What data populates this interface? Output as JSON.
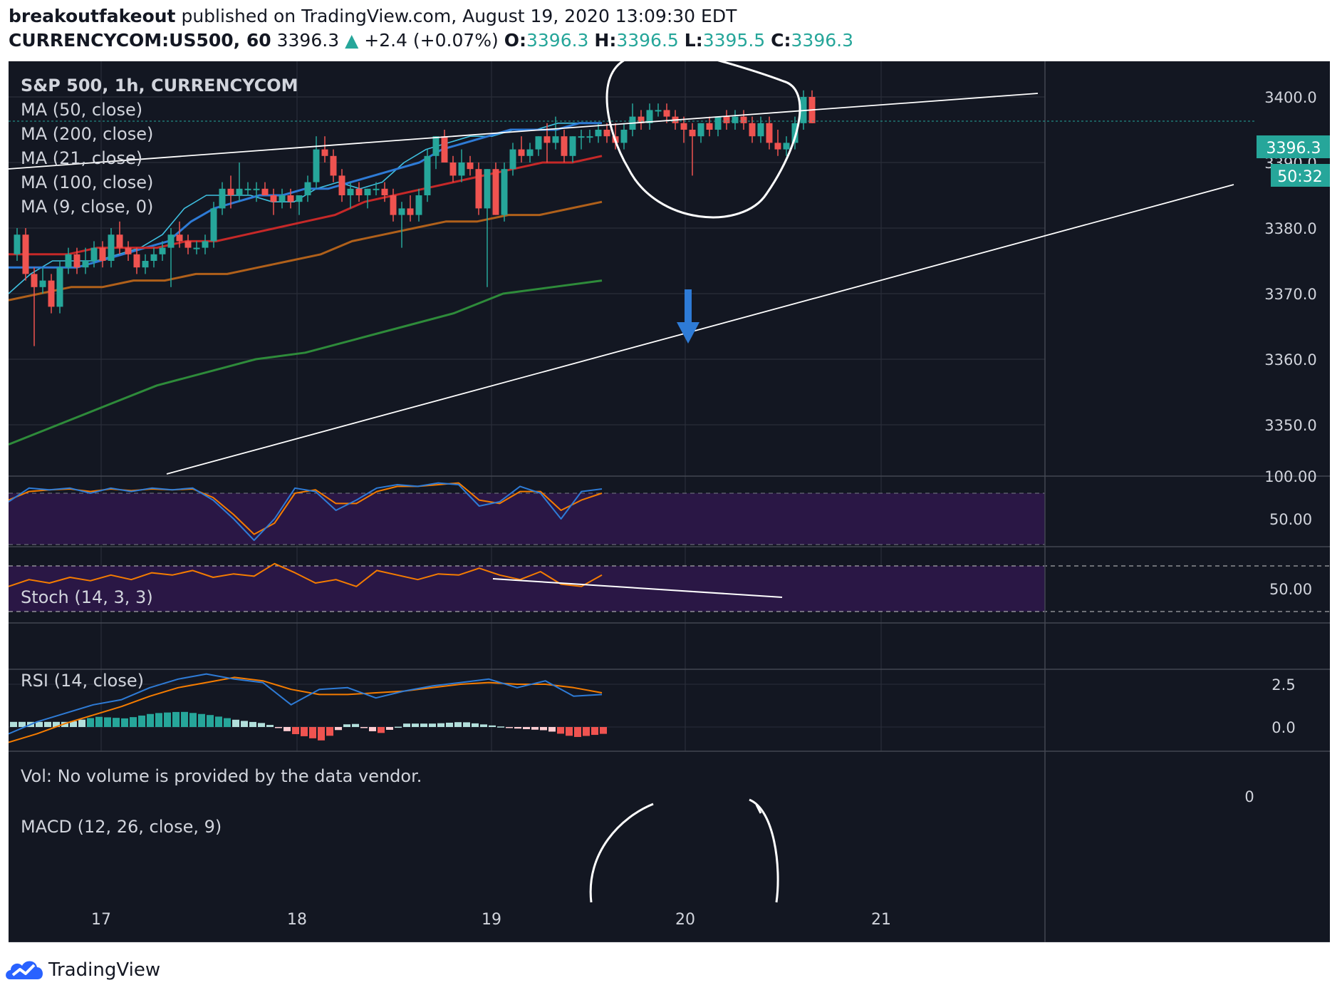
{
  "header": {
    "author": "breakoutfakeout",
    "published_text": "published on TradingView.com, August 19, 2020 13:09:30 EDT",
    "symbol": "CURRENCYCOM:US500, 60",
    "last": "3396.3",
    "change": "+2.4 (+0.07%)",
    "o_label": "O:",
    "o_value": "3396.3",
    "h_label": "H:",
    "h_value": "3396.5",
    "l_label": "L:",
    "l_value": "3395.5",
    "c_label": "C:",
    "c_value": "3396.3"
  },
  "legend": {
    "title": "S&P 500, 1h, CURRENCYCOM",
    "ma50": "MA (50, close)",
    "ma200": "MA (200, close)",
    "ma21": "MA (21, close)",
    "ma100": "MA (100, close)",
    "ma9": "MA (9, close, 0)",
    "stoch": "Stoch (14, 3, 3)",
    "rsi": "RSI (14, close)",
    "vol": "Vol: No volume is provided by the data vendor.",
    "macd": "MACD (12, 26, close, 9)"
  },
  "price_tag": "3396.3",
  "countdown": "50:32",
  "brand": "TradingView",
  "colors": {
    "background": "#131722",
    "bull": "#26a69a",
    "bear": "#ef5350",
    "ma9": "#3fc0e0",
    "ma21": "#2e7bd6",
    "ma50": "#c62828",
    "ma100": "#b0601a",
    "ma200": "#2e8b3a",
    "stoch_k": "#2e7bd6",
    "stoch_d": "#f57c00",
    "rsi": "#f57c00",
    "oscillator_band": "#2a1745"
  },
  "chart_data": {
    "type": "candlestick",
    "timeframe": "1h",
    "x_ticks": [
      "17",
      "18",
      "19",
      "20",
      "21"
    ],
    "price_axis": {
      "ticks": [
        "3400.0",
        "3390.0",
        "3380.0",
        "3370.0",
        "3360.0",
        "3350.0"
      ],
      "ylim": [
        3342.3,
        3404.4
      ]
    },
    "candles": [
      [
        3376,
        3380,
        3375,
        3379
      ],
      [
        3379,
        3380,
        3372,
        3373
      ],
      [
        3373,
        3374,
        3362,
        3371
      ],
      [
        3371,
        3374,
        3370,
        3372
      ],
      [
        3372,
        3373,
        3367,
        3368
      ],
      [
        3368,
        3375,
        3367,
        3374
      ],
      [
        3374,
        3377,
        3373,
        3376
      ],
      [
        3376,
        3377,
        3373,
        3374
      ],
      [
        3374,
        3377,
        3373,
        3375
      ],
      [
        3375,
        3378,
        3374,
        3377
      ],
      [
        3377,
        3378,
        3374,
        3375
      ],
      [
        3375,
        3380,
        3374,
        3379
      ],
      [
        3379,
        3381,
        3376,
        3377
      ],
      [
        3377,
        3378,
        3375,
        3376
      ],
      [
        3376,
        3377,
        3373,
        3374
      ],
      [
        3374,
        3376,
        3373,
        3375
      ],
      [
        3375,
        3377,
        3374,
        3376
      ],
      [
        3376,
        3378,
        3375,
        3377
      ],
      [
        3377,
        3380,
        3371,
        3379
      ],
      [
        3379,
        3381,
        3377,
        3378
      ],
      [
        3378,
        3379,
        3376,
        3377
      ],
      [
        3377,
        3378,
        3376,
        3377
      ],
      [
        3377,
        3379,
        3376,
        3378
      ],
      [
        3378,
        3384,
        3377,
        3383
      ],
      [
        3383,
        3387,
        3382,
        3386
      ],
      [
        3386,
        3388,
        3383,
        3385
      ],
      [
        3385,
        3390,
        3384,
        3386
      ],
      [
        3386,
        3387,
        3385,
        3386
      ],
      [
        3386,
        3387,
        3384,
        3386
      ],
      [
        3386,
        3387,
        3385,
        3385
      ],
      [
        3385,
        3386,
        3382,
        3384
      ],
      [
        3384,
        3386,
        3383,
        3385
      ],
      [
        3385,
        3386,
        3383,
        3384
      ],
      [
        3384,
        3385,
        3382,
        3385
      ],
      [
        3385,
        3388,
        3384,
        3387
      ],
      [
        3387,
        3394,
        3386,
        3392
      ],
      [
        3392,
        3394,
        3390,
        3391
      ],
      [
        3391,
        3392,
        3387,
        3388
      ],
      [
        3388,
        3389,
        3384,
        3385
      ],
      [
        3385,
        3387,
        3383,
        3386
      ],
      [
        3386,
        3387,
        3384,
        3385
      ],
      [
        3385,
        3386,
        3383,
        3386
      ],
      [
        3386,
        3387,
        3385,
        3386
      ],
      [
        3386,
        3387,
        3384,
        3385
      ],
      [
        3385,
        3386,
        3381,
        3382
      ],
      [
        3382,
        3384,
        3377,
        3383
      ],
      [
        3383,
        3385,
        3381,
        3382
      ],
      [
        3382,
        3386,
        3381,
        3385
      ],
      [
        3385,
        3392,
        3384,
        3391
      ],
      [
        3391,
        3394,
        3389,
        3394
      ],
      [
        3394,
        3395,
        3390,
        3390
      ],
      [
        3390,
        3391,
        3387,
        3388
      ],
      [
        3388,
        3392,
        3387,
        3390
      ],
      [
        3390,
        3391,
        3388,
        3389
      ],
      [
        3389,
        3390,
        3382,
        3383
      ],
      [
        3383,
        3389,
        3371,
        3389
      ],
      [
        3389,
        3390,
        3382,
        3382
      ],
      [
        3382,
        3390,
        3381,
        3389
      ],
      [
        3389,
        3393,
        3388,
        3392
      ],
      [
        3392,
        3394,
        3390,
        3391
      ],
      [
        3391,
        3393,
        3390,
        3392
      ],
      [
        3392,
        3394,
        3391,
        3394
      ],
      [
        3394,
        3396,
        3390,
        3393
      ],
      [
        3393,
        3397,
        3392,
        3394
      ],
      [
        3394,
        3395,
        3390,
        3391
      ],
      [
        3391,
        3394,
        3390,
        3394
      ],
      [
        3394,
        3395,
        3392,
        3394
      ],
      [
        3394,
        3395,
        3393,
        3394
      ],
      [
        3394,
        3396,
        3393,
        3395
      ],
      [
        3395,
        3396,
        3393,
        3394
      ],
      [
        3394,
        3396,
        3392,
        3393
      ],
      [
        3393,
        3396,
        3392,
        3395
      ],
      [
        3395,
        3399,
        3394,
        3397
      ],
      [
        3397,
        3398,
        3395,
        3396
      ],
      [
        3396,
        3399,
        3395,
        3398
      ],
      [
        3398,
        3399,
        3397,
        3398
      ],
      [
        3398,
        3399,
        3396,
        3397
      ],
      [
        3397,
        3398,
        3395,
        3396
      ],
      [
        3396,
        3397,
        3393,
        3395
      ],
      [
        3395,
        3396,
        3388,
        3394
      ],
      [
        3394,
        3396,
        3393,
        3396
      ],
      [
        3396,
        3397,
        3394,
        3395
      ],
      [
        3395,
        3397,
        3394,
        3397
      ],
      [
        3397,
        3398,
        3395,
        3396
      ],
      [
        3396,
        3398,
        3395,
        3397
      ],
      [
        3397,
        3398,
        3395,
        3396
      ],
      [
        3396,
        3397,
        3393,
        3394
      ],
      [
        3394,
        3397,
        3393,
        3396
      ],
      [
        3396,
        3397,
        3392,
        3393
      ],
      [
        3393,
        3395,
        3391,
        3392
      ],
      [
        3392,
        3394,
        3391,
        3393
      ],
      [
        3393,
        3397,
        3392,
        3396
      ],
      [
        3396,
        3401,
        3395,
        3400
      ],
      [
        3400,
        3401,
        3396,
        3396
      ]
    ],
    "moving_averages": [
      {
        "name": "MA (9, close, 0)",
        "values": [
          3370,
          3373,
          3375,
          3375,
          3375,
          3376,
          3377,
          3379,
          3383,
          3385,
          3385,
          3385,
          3384,
          3384,
          3386,
          3387,
          3386,
          3387,
          3390,
          3392,
          3393,
          3394,
          3394,
          3395,
          3395,
          3396,
          3396,
          3396
        ]
      },
      {
        "name": "MA (21, close)",
        "values": [
          3374,
          3374,
          3374,
          3374,
          3375,
          3376,
          3377,
          3378,
          3381,
          3383,
          3384,
          3385,
          3385,
          3386,
          3386,
          3387,
          3388,
          3389,
          3390,
          3392,
          3393,
          3394,
          3395,
          3395,
          3395,
          3396,
          3396
        ]
      },
      {
        "name": "MA (50, close)",
        "values": [
          3376,
          3376,
          3376,
          3377,
          3377,
          3377,
          3378,
          3378,
          3379,
          3380,
          3381,
          3382,
          3384,
          3385,
          3386,
          3387,
          3388,
          3389,
          3390,
          3390,
          3391
        ]
      },
      {
        "name": "MA (100, close)",
        "values": [
          3369,
          3370,
          3371,
          3371,
          3372,
          3372,
          3373,
          3373,
          3374,
          3375,
          3376,
          3378,
          3379,
          3380,
          3381,
          3381,
          3382,
          3382,
          3383,
          3384
        ]
      },
      {
        "name": "MA (200, close)",
        "values": [
          3347,
          3350,
          3353,
          3356,
          3358,
          3360,
          3361,
          3363,
          3365,
          3367,
          3370,
          3371,
          3372
        ]
      }
    ],
    "stoch": {
      "ticks": [
        "100.00",
        "50.00"
      ],
      "k": [
        70,
        86,
        84,
        86,
        80,
        86,
        82,
        86,
        84,
        86,
        72,
        50,
        25,
        50,
        86,
        82,
        60,
        72,
        86,
        90,
        88,
        92,
        90,
        65,
        70,
        88,
        80,
        50,
        82,
        85
      ],
      "d": [
        72,
        82,
        84,
        85,
        82,
        85,
        83,
        85,
        84,
        85,
        75,
        55,
        32,
        45,
        80,
        84,
        68,
        68,
        82,
        88,
        88,
        90,
        92,
        72,
        68,
        82,
        82,
        60,
        72,
        80
      ]
    },
    "rsi": {
      "ticks": [
        "50.00"
      ],
      "values": [
        52,
        58,
        55,
        60,
        57,
        62,
        58,
        64,
        62,
        66,
        60,
        63,
        61,
        72,
        64,
        55,
        58,
        52,
        66,
        62,
        58,
        63,
        62,
        68,
        62,
        58,
        65,
        54,
        52,
        62
      ]
    },
    "volume": {
      "ticks": [
        "0"
      ]
    },
    "macd": {
      "ticks": [
        "2.5",
        "0.0"
      ],
      "macd": [
        -0.4,
        0.3,
        0.8,
        1.3,
        1.6,
        2.3,
        2.8,
        3.1,
        2.8,
        2.6,
        1.3,
        2.2,
        2.3,
        1.7,
        2.1,
        2.4,
        2.6,
        2.8,
        2.3,
        2.7,
        1.8,
        1.9
      ],
      "signal": [
        -0.9,
        -0.4,
        0.2,
        0.7,
        1.2,
        1.8,
        2.3,
        2.6,
        2.9,
        2.7,
        2.2,
        1.9,
        1.9,
        2.0,
        2.1,
        2.3,
        2.5,
        2.6,
        2.5,
        2.5,
        2.3,
        2.0
      ],
      "histogram": [
        0.3,
        0.3,
        0.3,
        0.6,
        0.5,
        0.8,
        0.9,
        0.7,
        0.4,
        0.2,
        -0.4,
        -0.8,
        0.3,
        -0.4,
        0.2,
        0.2,
        0.3,
        0.1,
        -0.1,
        -0.2,
        -0.6,
        -0.4
      ]
    }
  }
}
